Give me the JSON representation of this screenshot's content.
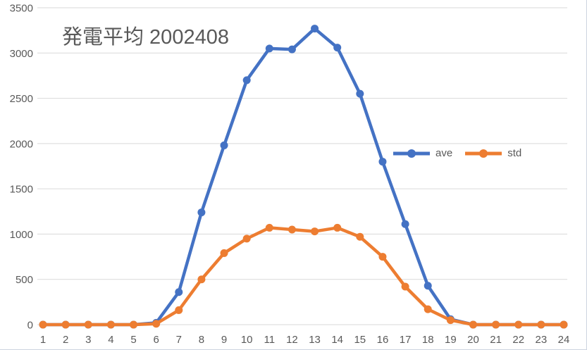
{
  "chart_data": {
    "type": "line",
    "title": "発電平均 2002408",
    "x": [
      1,
      2,
      3,
      4,
      5,
      6,
      7,
      8,
      9,
      10,
      11,
      12,
      13,
      14,
      15,
      16,
      17,
      18,
      19,
      20,
      21,
      22,
      23,
      24
    ],
    "xlabel": "",
    "ylabel": "",
    "ylim": [
      0,
      3500
    ],
    "yticks": [
      0,
      500,
      1000,
      1500,
      2000,
      2500,
      3000,
      3500
    ],
    "grid": "horizontal",
    "legend_position": "overlay-middle-right",
    "marker": "circle",
    "series": [
      {
        "name": "ave",
        "color": "#4472C4",
        "values": [
          0,
          0,
          0,
          0,
          0,
          20,
          360,
          1240,
          1980,
          2700,
          3050,
          3040,
          3270,
          3060,
          2550,
          1800,
          1110,
          430,
          60,
          0,
          0,
          0,
          0,
          0
        ]
      },
      {
        "name": "std",
        "color": "#ED7D31",
        "values": [
          0,
          0,
          0,
          0,
          0,
          10,
          160,
          500,
          790,
          950,
          1070,
          1050,
          1030,
          1070,
          970,
          750,
          420,
          170,
          50,
          0,
          0,
          0,
          0,
          0
        ]
      }
    ]
  },
  "colors": {
    "text": "#595959",
    "grid": "#D9D9D9",
    "border": "#CDD4E0",
    "background": "#FFFFFF"
  }
}
